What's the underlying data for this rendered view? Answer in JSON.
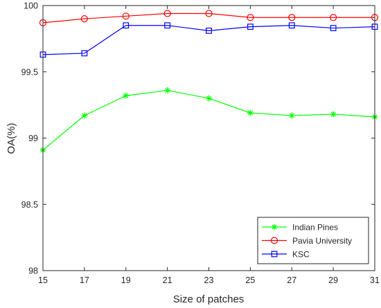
{
  "chart_data": {
    "type": "line",
    "title": "",
    "xlabel": "Size of patches",
    "ylabel": "OA(%)",
    "x": [
      15,
      17,
      19,
      21,
      23,
      25,
      27,
      29,
      31
    ],
    "xlim": [
      15,
      31
    ],
    "ylim": [
      98,
      100
    ],
    "xticks": [
      "15",
      "17",
      "19",
      "21",
      "23",
      "25",
      "27",
      "29",
      "31"
    ],
    "yticks": [
      "98",
      "98.5",
      "99",
      "99.5",
      "100"
    ],
    "grid": false,
    "legend_position": "bottom-right",
    "series": [
      {
        "name": "Indian Pines",
        "color": "#00ff00",
        "marker": "asterisk",
        "values": [
          98.91,
          99.17,
          99.32,
          99.36,
          99.3,
          99.19,
          99.17,
          99.18,
          99.16
        ]
      },
      {
        "name": "Pavia University",
        "color": "#ff0000",
        "marker": "circle",
        "values": [
          99.87,
          99.9,
          99.92,
          99.94,
          99.94,
          99.91,
          99.91,
          99.91,
          99.91
        ]
      },
      {
        "name": "KSC",
        "color": "#0000ff",
        "marker": "square",
        "values": [
          99.63,
          99.64,
          99.85,
          99.85,
          99.81,
          99.84,
          99.85,
          99.83,
          99.84
        ]
      }
    ]
  }
}
